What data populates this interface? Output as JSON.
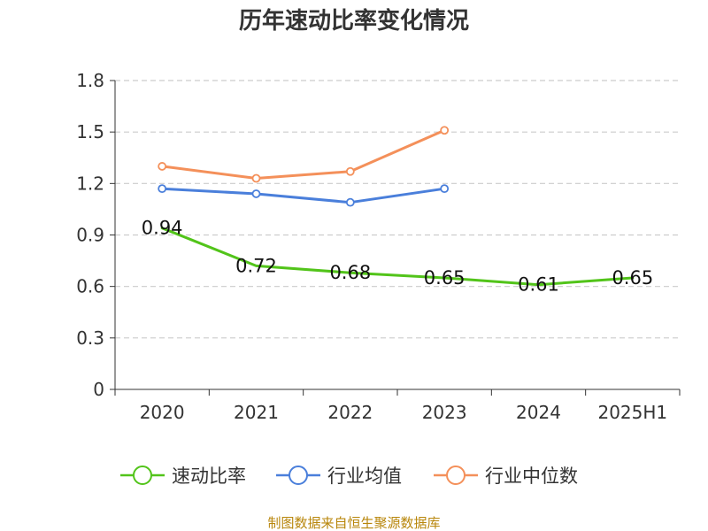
{
  "chart_data": {
    "type": "line",
    "title": "历年速动比率变化情况",
    "categories": [
      "2020",
      "2021",
      "2022",
      "2023",
      "2024",
      "2025H1"
    ],
    "ylim": [
      0,
      1.8
    ],
    "yticks": [
      "0",
      "0.3",
      "0.6",
      "0.9",
      "1.2",
      "1.5",
      "1.8"
    ],
    "grid": "horizontal dashed",
    "legend_position": "bottom",
    "series": [
      {
        "name": "速动比率",
        "color": "#52c41a",
        "values": [
          0.94,
          0.72,
          0.68,
          0.65,
          0.61,
          0.65
        ],
        "labels": [
          "0.94",
          "0.72",
          "0.68",
          "0.65",
          "0.61",
          "0.65"
        ],
        "show_markers": false
      },
      {
        "name": "行业均值",
        "color": "#4a7fdb",
        "values": [
          1.17,
          1.14,
          1.09,
          1.17,
          null,
          null
        ],
        "show_markers": true
      },
      {
        "name": "行业中位数",
        "color": "#f4905a",
        "values": [
          1.3,
          1.23,
          1.27,
          1.51,
          null,
          null
        ],
        "show_markers": true
      }
    ]
  },
  "source": "制图数据来自恒生聚源数据库"
}
